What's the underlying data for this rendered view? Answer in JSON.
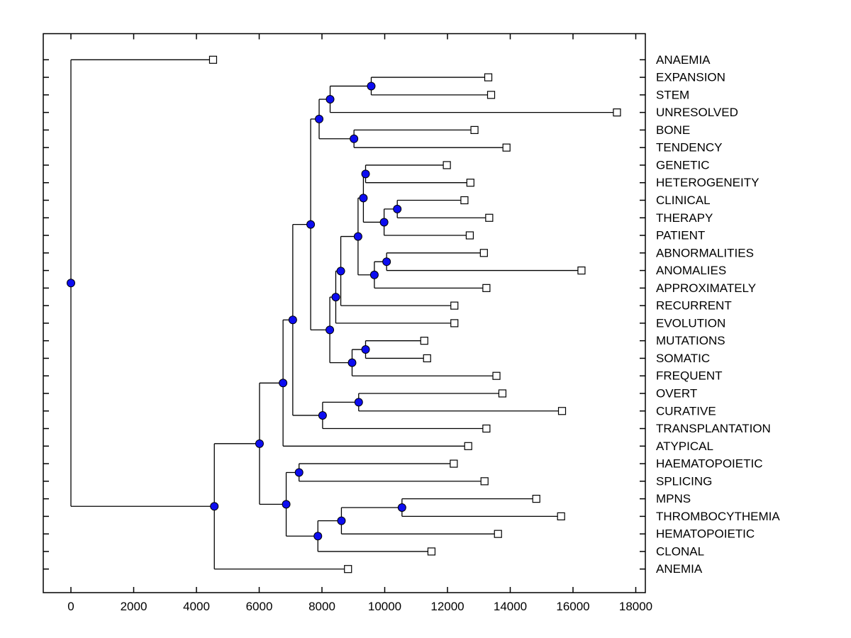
{
  "figure": {
    "background": "#ffffff",
    "title": ""
  },
  "colors": {
    "line": "#000000",
    "branch_marker_fill": "#0d0df0",
    "branch_marker_edge": "#000000",
    "leaf_marker_fill": "#ffffff",
    "leaf_marker_edge": "#000000",
    "text": "#000000",
    "axis_box": "#000000"
  },
  "chart_data": {
    "type": "dendrogram",
    "subtype": "phylogenetic-tree-horizontal",
    "orientation": "root at left, leaves and labels at right",
    "title": "",
    "xlabel": "",
    "ylabel": "",
    "grid": false,
    "legend": null,
    "x_axis": {
      "ticks": [
        0,
        2000,
        4000,
        6000,
        8000,
        10000,
        12000,
        14000,
        16000,
        18000
      ],
      "min_shown": 0,
      "max_shown": 18000
    },
    "marker_legend": {
      "branch_node": "filled blue circle",
      "leaf_node": "open white square"
    },
    "leaf_rows": [
      {
        "label": "ANAEMIA",
        "distance": 4530
      },
      {
        "label": "EXPANSION",
        "distance": 13300
      },
      {
        "label": "STEM",
        "distance": 13390
      },
      {
        "label": "UNRESOLVED",
        "distance": 17400
      },
      {
        "label": "BONE",
        "distance": 12860
      },
      {
        "label": "TENDENCY",
        "distance": 13880
      },
      {
        "label": "GENETIC",
        "distance": 11980
      },
      {
        "label": "HETEROGENEITY",
        "distance": 12730
      },
      {
        "label": "CLINICAL",
        "distance": 12540
      },
      {
        "label": "THERAPY",
        "distance": 13330
      },
      {
        "label": "PATIENT",
        "distance": 12710
      },
      {
        "label": "ABNORMALITIES",
        "distance": 13160
      },
      {
        "label": "ANOMALIES",
        "distance": 16270
      },
      {
        "label": "APPROXIMATELY",
        "distance": 13240
      },
      {
        "label": "RECURRENT",
        "distance": 12220
      },
      {
        "label": "EVOLUTION",
        "distance": 12220
      },
      {
        "label": "MUTATIONS",
        "distance": 11260
      },
      {
        "label": "SOMATIC",
        "distance": 11350
      },
      {
        "label": "FREQUENT",
        "distance": 13560
      },
      {
        "label": "OVERT",
        "distance": 13750
      },
      {
        "label": "CURATIVE",
        "distance": 15650
      },
      {
        "label": "TRANSPLANTATION",
        "distance": 13240
      },
      {
        "label": "ATYPICAL",
        "distance": 12660
      },
      {
        "label": "HAEMATOPOIETIC",
        "distance": 12200
      },
      {
        "label": "SPLICING",
        "distance": 13180
      },
      {
        "label": "MPNS",
        "distance": 14830
      },
      {
        "label": "THROMBOCYTHEMIA",
        "distance": 15620
      },
      {
        "label": "HEMATOPOIETIC",
        "distance": 13610
      },
      {
        "label": "CLONAL",
        "distance": 11490
      },
      {
        "label": "ANEMIA",
        "distance": 8830
      }
    ],
    "tree": {
      "d": 0,
      "c": [
        "ANAEMIA",
        {
          "d": 4570,
          "c": [
            {
              "d": 6010,
              "c": [
                {
                  "d": 6760,
                  "c": [
                    {
                      "d": 7070,
                      "c": [
                        {
                          "d": 7640,
                          "c": [
                            {
                              "d": 7910,
                              "c": [
                                {
                                  "d": 8260,
                                  "c": [
                                    {
                                      "d": 9570,
                                      "c": [
                                        "EXPANSION",
                                        "STEM"
                                      ]
                                    },
                                    "UNRESOLVED"
                                  ]
                                },
                                {
                                  "d": 9020,
                                  "c": [
                                    "BONE",
                                    "TENDENCY"
                                  ]
                                }
                              ]
                            },
                            {
                              "d": 8250,
                              "c": [
                                {
                                  "d": 8440,
                                  "c": [
                                    {
                                      "d": 8600,
                                      "c": [
                                        {
                                          "d": 9150,
                                          "c": [
                                            {
                                              "d": 9320,
                                              "c": [
                                                {
                                                  "d": 9390,
                                                  "c": [
                                                    "GENETIC",
                                                    "HETEROGENEITY"
                                                  ]
                                                },
                                                {
                                                  "d": 9980,
                                                  "c": [
                                                    {
                                                      "d": 10400,
                                                      "c": [
                                                        "CLINICAL",
                                                        "THERAPY"
                                                      ]
                                                    },
                                                    "PATIENT"
                                                  ]
                                                }
                                              ]
                                            },
                                            {
                                              "d": 9670,
                                              "c": [
                                                {
                                                  "d": 10060,
                                                  "c": [
                                                    "ABNORMALITIES",
                                                    "ANOMALIES"
                                                  ]
                                                },
                                                "APPROXIMATELY"
                                              ]
                                            }
                                          ]
                                        },
                                        "RECURRENT"
                                      ]
                                    },
                                    "EVOLUTION"
                                  ]
                                },
                                {
                                  "d": 8960,
                                  "c": [
                                    {
                                      "d": 9390,
                                      "c": [
                                        "MUTATIONS",
                                        "SOMATIC"
                                      ]
                                    },
                                    "FREQUENT"
                                  ]
                                }
                              ]
                            }
                          ]
                        },
                        {
                          "d": 8020,
                          "c": [
                            {
                              "d": 9170,
                              "c": [
                                "OVERT",
                                "CURATIVE"
                              ]
                            },
                            "TRANSPLANTATION"
                          ]
                        }
                      ]
                    },
                    "ATYPICAL"
                  ]
                },
                {
                  "d": 6860,
                  "c": [
                    {
                      "d": 7270,
                      "c": [
                        "HAEMATOPOIETIC",
                        "SPLICING"
                      ]
                    },
                    {
                      "d": 7870,
                      "c": [
                        {
                          "d": 8620,
                          "c": [
                            {
                              "d": 10550,
                              "c": [
                                "MPNS",
                                "THROMBOCYTHEMIA"
                              ]
                            },
                            "HEMATOPOIETIC"
                          ]
                        },
                        "CLONAL"
                      ]
                    }
                  ]
                }
              ]
            },
            "ANEMIA"
          ]
        }
      ]
    }
  }
}
